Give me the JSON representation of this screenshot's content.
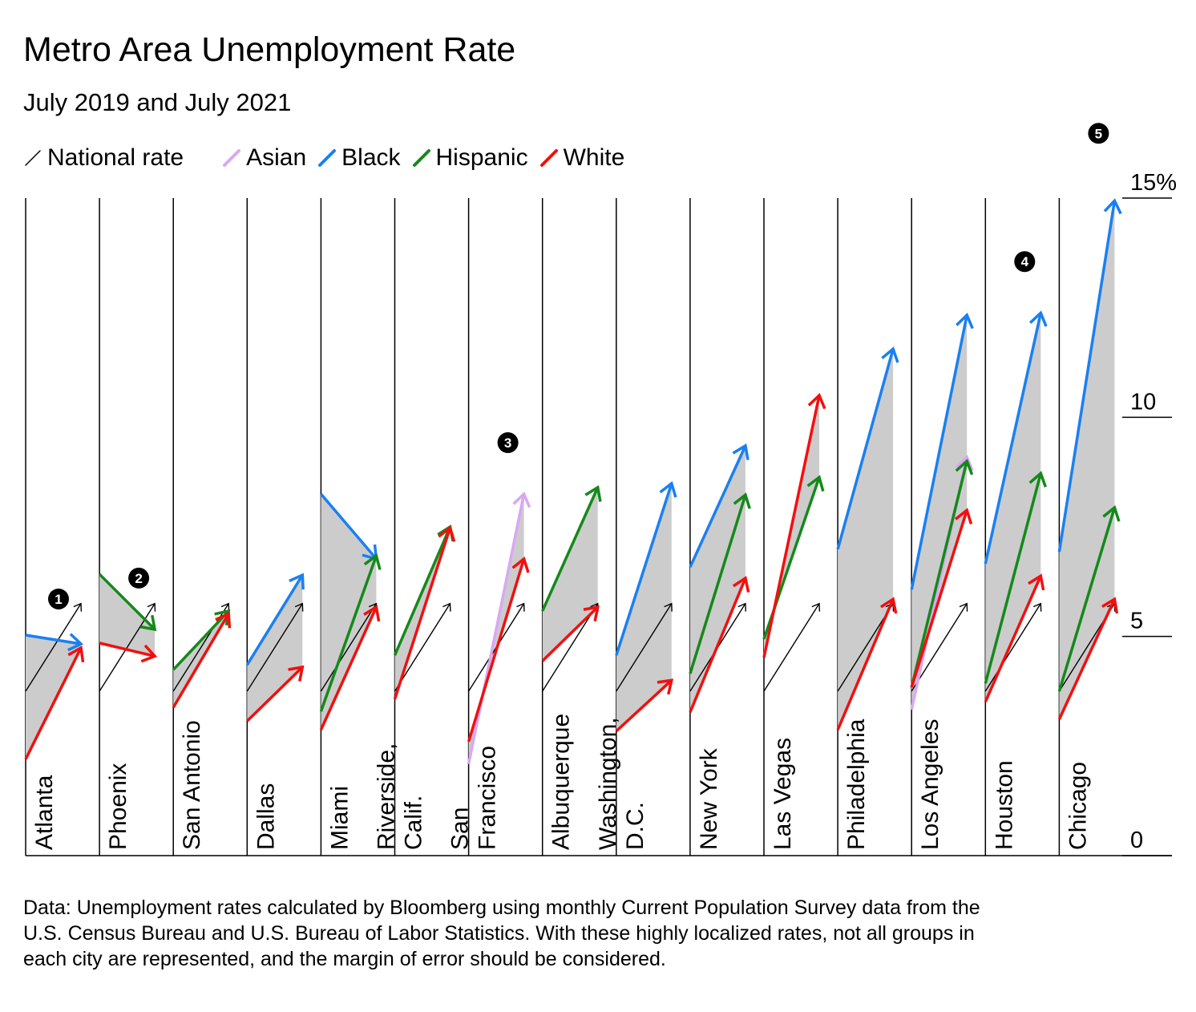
{
  "chart_data": {
    "type": "slope-arrows",
    "title": "Metro Area Unemployment Rate",
    "subtitle": "July 2019 and July 2021",
    "legend": [
      {
        "name": "National rate",
        "color": "#000000"
      },
      {
        "name": "Asian",
        "color": "#d9a8f2"
      },
      {
        "name": "Black",
        "color": "#1a80f0"
      },
      {
        "name": "Hispanic",
        "color": "#14891a"
      },
      {
        "name": "White",
        "color": "#f20f0f"
      }
    ],
    "legend_placement": "top-left",
    "fill_color": "#cccccc",
    "y_ticks": [
      "0",
      "5",
      "10",
      "15%"
    ],
    "y_tick_values": [
      0,
      5,
      10,
      15
    ],
    "ylim": [
      0,
      15
    ],
    "national": [
      3.75,
      5.75
    ],
    "cities": [
      {
        "name": "Atlanta",
        "badge": "1",
        "series": {
          "Black": [
            5.03,
            4.83
          ],
          "White": [
            2.2,
            4.74
          ]
        }
      },
      {
        "name": "Phoenix",
        "badge": "2",
        "series": {
          "Hispanic": [
            6.42,
            5.16
          ],
          "White": [
            4.85,
            4.55
          ]
        }
      },
      {
        "name": "San Antonio",
        "series": {
          "Hispanic": [
            4.24,
            5.58
          ],
          "White": [
            3.38,
            5.52
          ]
        }
      },
      {
        "name": "Dallas",
        "series": {
          "Black": [
            4.35,
            6.4
          ],
          "White": [
            3.07,
            4.3
          ]
        }
      },
      {
        "name": "Miami",
        "series": {
          "Black": [
            8.25,
            6.77
          ],
          "Hispanic": [
            3.29,
            6.84
          ],
          "White": [
            2.87,
            5.67
          ]
        }
      },
      {
        "name": "Riverside,\nCalif.",
        "series": {
          "Hispanic": [
            4.57,
            7.5
          ],
          "White": [
            3.57,
            7.48
          ]
        }
      },
      {
        "name": "San\nFrancisco",
        "badge": "3",
        "series": {
          "Asian": [
            2.09,
            8.25
          ],
          "White": [
            2.6,
            6.77
          ]
        }
      },
      {
        "name": "Albuquerque",
        "series": {
          "Hispanic": [
            5.58,
            8.4
          ],
          "White": [
            4.44,
            5.67
          ]
        }
      },
      {
        "name": "Washington,\nD.C.",
        "series": {
          "Black": [
            4.57,
            8.49
          ],
          "White": [
            2.84,
            4.0
          ]
        }
      },
      {
        "name": "New York",
        "series": {
          "Black": [
            6.58,
            9.35
          ],
          "Hispanic": [
            4.15,
            8.23
          ],
          "White": [
            3.27,
            6.33
          ]
        }
      },
      {
        "name": "Las Vegas",
        "series": {
          "Hispanic": [
            4.94,
            8.63
          ],
          "White": [
            4.52,
            10.5
          ]
        }
      },
      {
        "name": "Philadelphia",
        "series": {
          "Black": [
            6.99,
            11.56
          ],
          "White": [
            2.87,
            5.85
          ]
        }
      },
      {
        "name": "Los Angeles",
        "series": {
          "Asian": [
            3.33,
            9.09
          ],
          "Black": [
            6.07,
            12.33
          ],
          "Hispanic": [
            3.84,
            9.0
          ],
          "White": [
            3.84,
            7.88
          ]
        }
      },
      {
        "name": "Houston",
        "badge": "4",
        "series": {
          "Black": [
            6.66,
            12.38
          ],
          "Hispanic": [
            3.93,
            8.72
          ],
          "White": [
            3.51,
            6.38
          ]
        }
      },
      {
        "name": "Chicago",
        "badge": "5",
        "series": {
          "Black": [
            6.93,
            14.94
          ],
          "Hispanic": [
            3.75,
            7.94
          ],
          "White": [
            3.11,
            5.85
          ]
        }
      }
    ],
    "note": "Data: Unemployment rates calculated by Bloomberg using monthly Current Population Survey data from the U.S. Census Bureau and U.S. Bureau of Labor Statistics. With these highly localized rates, not all groups in each city are represented, and the margin of error should be considered."
  }
}
